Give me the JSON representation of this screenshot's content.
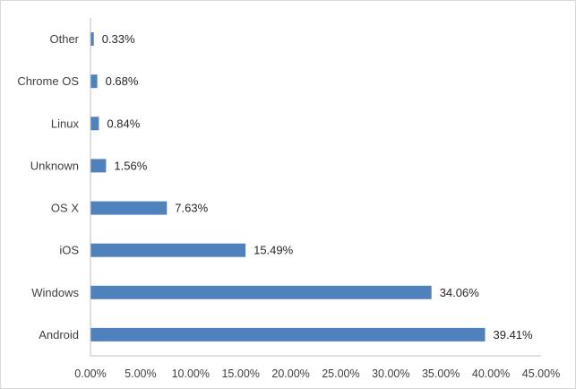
{
  "chart_data": {
    "type": "bar",
    "orientation": "horizontal",
    "categories": [
      "Other",
      "Chrome OS",
      "Linux",
      "Unknown",
      "OS X",
      "iOS",
      "Windows",
      "Android"
    ],
    "values": [
      0.33,
      0.68,
      0.84,
      1.56,
      7.63,
      15.49,
      34.06,
      39.41
    ],
    "data_labels": [
      "0.33%",
      "0.68%",
      "0.84%",
      "1.56%",
      "7.63%",
      "15.49%",
      "34.06%",
      "39.41%"
    ],
    "xlim": [
      0,
      45
    ],
    "x_ticks": [
      0,
      5,
      10,
      15,
      20,
      25,
      30,
      35,
      40,
      45
    ],
    "x_tick_labels": [
      "0.00%",
      "5.00%",
      "10.00%",
      "15.00%",
      "20.00%",
      "25.00%",
      "30.00%",
      "35.00%",
      "40.00%",
      "45.00%"
    ],
    "title": "",
    "xlabel": "",
    "ylabel": "",
    "grid": false,
    "legend": "none",
    "bar_color": "#4F81BD",
    "axis_color": "#BFBFBF"
  }
}
